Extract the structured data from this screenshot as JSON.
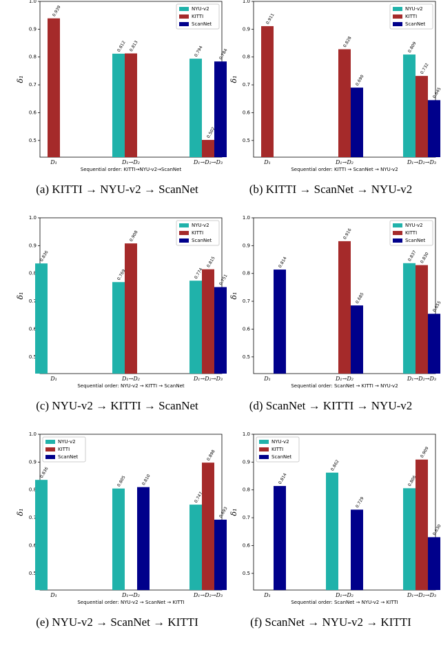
{
  "chart_data": [
    {
      "type": "bar",
      "caption": "(a) KITTI → NYU-v2 → ScanNet",
      "x_label": "Sequential order: KITTI→NYU-v2→ScanNet",
      "y_label": "δ₁",
      "categories": [
        "D₁",
        "D₁→D₂",
        "D₁→D₂→D₃"
      ],
      "ylim": [
        0.44,
        1.0
      ],
      "yticks": [
        0.5,
        0.6,
        0.7,
        0.8,
        0.9,
        {
          "value": 1,
          "label": "1.0"
        }
      ],
      "legend": "upper right",
      "series": [
        {
          "name": "NYU-v2",
          "color": "#20b2aa",
          "values": [
            null,
            0.812,
            0.794
          ],
          "value_labels": [
            null,
            "0.812",
            "0.794"
          ]
        },
        {
          "name": "KITTI",
          "color": "#a52a2a",
          "values": [
            0.939,
            0.813,
            0.502
          ],
          "value_labels": [
            "0.939",
            "0.813",
            "0.502"
          ]
        },
        {
          "name": "ScanNet",
          "color": "#00008b",
          "values": [
            null,
            null,
            0.784
          ],
          "value_labels": [
            null,
            null,
            "0.784"
          ]
        }
      ]
    },
    {
      "type": "bar",
      "caption": "(b) KITTI → ScanNet → NYU-v2",
      "x_label": "Sequential order:  KITTI → ScanNet → NYU-v2",
      "y_label": "δ₁",
      "categories": [
        "D₁",
        "D₁→D₂",
        "D₁→D₂→D₃"
      ],
      "ylim": [
        0.44,
        1.0
      ],
      "yticks": [
        0.5,
        0.6,
        0.7,
        0.8,
        0.9,
        {
          "value": 1,
          "label": "1.0"
        }
      ],
      "legend": "upper right",
      "series": [
        {
          "name": "NYU-v2",
          "color": "#20b2aa",
          "values": [
            null,
            null,
            0.809
          ],
          "value_labels": [
            null,
            null,
            "0.809"
          ]
        },
        {
          "name": "KITTI",
          "color": "#a52a2a",
          "values": [
            0.911,
            0.828,
            0.732
          ],
          "value_labels": [
            "0.911",
            "0.828",
            "0.732"
          ]
        },
        {
          "name": "ScanNet",
          "color": "#00008b",
          "values": [
            null,
            0.69,
            0.645
          ],
          "value_labels": [
            null,
            "0.690",
            "0.645"
          ]
        }
      ]
    },
    {
      "type": "bar",
      "caption": "(c) NYU-v2 → KITTI → ScanNet",
      "x_label": "Sequential order:  NYU-v2 → KITTI → ScanNet",
      "y_label": "δ₁",
      "categories": [
        "D₁",
        "D₁→D₂",
        "D₁→D₂→D₃"
      ],
      "ylim": [
        0.44,
        1.0
      ],
      "yticks": [
        0.5,
        0.6,
        0.7,
        0.8,
        0.9,
        {
          "value": 1,
          "label": "1.0"
        }
      ],
      "legend": "upper right",
      "series": [
        {
          "name": "NYU-v2",
          "color": "#20b2aa",
          "values": [
            0.836,
            0.769,
            0.774
          ],
          "value_labels": [
            "0.836",
            "0.769",
            "0.774"
          ]
        },
        {
          "name": "KITTI",
          "color": "#a52a2a",
          "values": [
            null,
            0.908,
            0.815
          ],
          "value_labels": [
            null,
            "0.908",
            "0.815"
          ]
        },
        {
          "name": "ScanNet",
          "color": "#00008b",
          "values": [
            null,
            null,
            0.751
          ],
          "value_labels": [
            null,
            null,
            "0.751"
          ]
        }
      ]
    },
    {
      "type": "bar",
      "caption": "(d) ScanNet → KITTI → NYU-v2",
      "x_label": "Sequential order:  ScanNet → KITTI → NYU-v2",
      "y_label": "δ₁",
      "categories": [
        "D₁",
        "D₁→D₂",
        "D₁→D₂→D₃"
      ],
      "ylim": [
        0.44,
        1.0
      ],
      "yticks": [
        0.5,
        0.6,
        0.7,
        0.8,
        0.9,
        {
          "value": 1,
          "label": "1.0"
        }
      ],
      "legend": "upper right",
      "series": [
        {
          "name": "NYU-v2",
          "color": "#20b2aa",
          "values": [
            null,
            null,
            0.837
          ],
          "value_labels": [
            null,
            null,
            "0.837"
          ]
        },
        {
          "name": "KITTI",
          "color": "#a52a2a",
          "values": [
            null,
            0.916,
            0.83
          ],
          "value_labels": [
            null,
            "0.916",
            "0.830"
          ]
        },
        {
          "name": "ScanNet",
          "color": "#00008b",
          "values": [
            0.814,
            0.685,
            0.655
          ],
          "value_labels": [
            "0.814",
            "0.685",
            "0.655"
          ]
        }
      ]
    },
    {
      "type": "bar",
      "caption": "(e) NYU-v2 → ScanNet → KITTI",
      "x_label": "Sequential order:  NYU-v2 → ScanNet → KITTI",
      "y_label": "δ₁",
      "categories": [
        "D₁",
        "D₁→D₂",
        "D₁→D₂→D₃"
      ],
      "ylim": [
        0.44,
        1.0
      ],
      "yticks": [
        0.5,
        0.6,
        0.7,
        0.8,
        0.9,
        {
          "value": 1,
          "label": "1.0"
        }
      ],
      "legend": "upper left",
      "series": [
        {
          "name": "NYU-v2",
          "color": "#20b2aa",
          "values": [
            0.836,
            0.805,
            0.747
          ],
          "value_labels": [
            "0.836",
            "0.805",
            "0.747"
          ]
        },
        {
          "name": "KITTI",
          "color": "#a52a2a",
          "values": [
            null,
            null,
            0.898
          ],
          "value_labels": [
            null,
            null,
            "0.898"
          ]
        },
        {
          "name": "ScanNet",
          "color": "#00008b",
          "values": [
            null,
            0.81,
            0.693
          ],
          "value_labels": [
            null,
            "0.810",
            "0.693"
          ]
        }
      ]
    },
    {
      "type": "bar",
      "caption": "(f) ScanNet → NYU-v2 → KITTI",
      "x_label": "Sequential order:  ScanNet → NYU-v2 → KITTI",
      "y_label": "δ₁",
      "categories": [
        "D₁",
        "D₁→D₂",
        "D₁→D₂→D₃"
      ],
      "ylim": [
        0.44,
        1.0
      ],
      "yticks": [
        0.5,
        0.6,
        0.7,
        0.8,
        0.9,
        {
          "value": 1,
          "label": "1.0"
        }
      ],
      "legend": "upper left",
      "series": [
        {
          "name": "NYU-v2",
          "color": "#20b2aa",
          "values": [
            null,
            0.862,
            0.806
          ],
          "value_labels": [
            null,
            "0.862",
            "0.806"
          ]
        },
        {
          "name": "KITTI",
          "color": "#a52a2a",
          "values": [
            null,
            null,
            0.909
          ],
          "value_labels": [
            null,
            null,
            "0.909"
          ]
        },
        {
          "name": "ScanNet",
          "color": "#00008b",
          "values": [
            0.814,
            0.729,
            0.63
          ],
          "value_labels": [
            "0.814",
            "0.729",
            "0.630"
          ]
        }
      ]
    }
  ]
}
